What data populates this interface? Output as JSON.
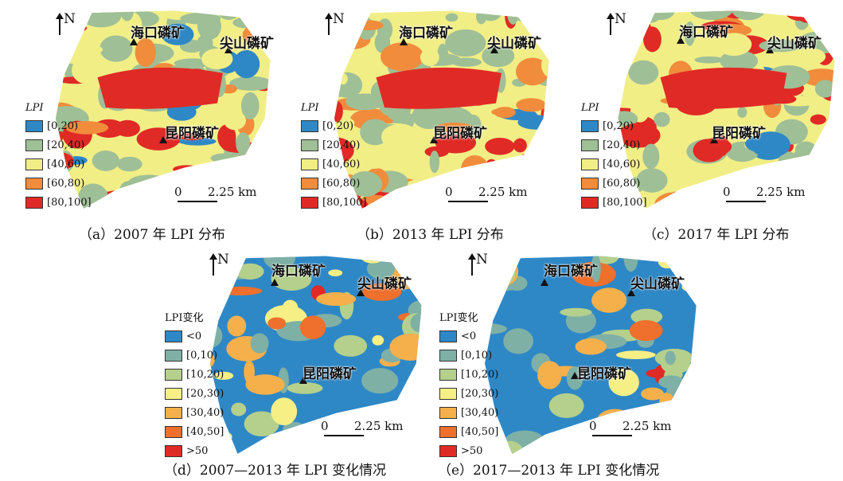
{
  "legend_lpi": {
    "title": "LPI",
    "classes": [
      {
        "label": "[0,20)",
        "color": "#2f88c6"
      },
      {
        "label": "[20,40)",
        "color": "#9fbf96"
      },
      {
        "label": "[40,60)",
        "color": "#f1ee86"
      },
      {
        "label": "[60,80)",
        "color": "#f08c3c"
      },
      {
        "label": "[80,100]",
        "color": "#e02a25"
      }
    ]
  },
  "legend_change": {
    "title": "LPI变化",
    "classes": [
      {
        "label": "<0",
        "color": "#2f88c6"
      },
      {
        "label": "[0,10)",
        "color": "#7fb0a6"
      },
      {
        "label": "[10,20)",
        "color": "#b4d08c"
      },
      {
        "label": "[20,30)",
        "color": "#f5ef86"
      },
      {
        "label": "[30,40)",
        "color": "#f5b04c"
      },
      {
        "label": "[40,50]",
        "color": "#ef6f2c"
      },
      {
        "label": ">50",
        "color": "#e02a25"
      }
    ]
  },
  "north_label": "N",
  "scale": {
    "zero": "0",
    "distance": "2.25 km"
  },
  "sites": {
    "haikou": "海口磷矿",
    "jianshan": "尖山磷矿",
    "kunyang": "昆阳磷矿"
  },
  "panels": [
    {
      "caption": "（a）2007 年 LPI 分布",
      "kind": "lpi"
    },
    {
      "caption": "（b）2013 年 LPI 分布",
      "kind": "lpi"
    },
    {
      "caption": "（c）2017 年 LPI 分布",
      "kind": "lpi"
    },
    {
      "caption": "（d）2007—2013 年 LPI 变化情况",
      "kind": "change"
    },
    {
      "caption": "（e）2017—2013 年 LPI 变化情况",
      "kind": "change"
    }
  ]
}
